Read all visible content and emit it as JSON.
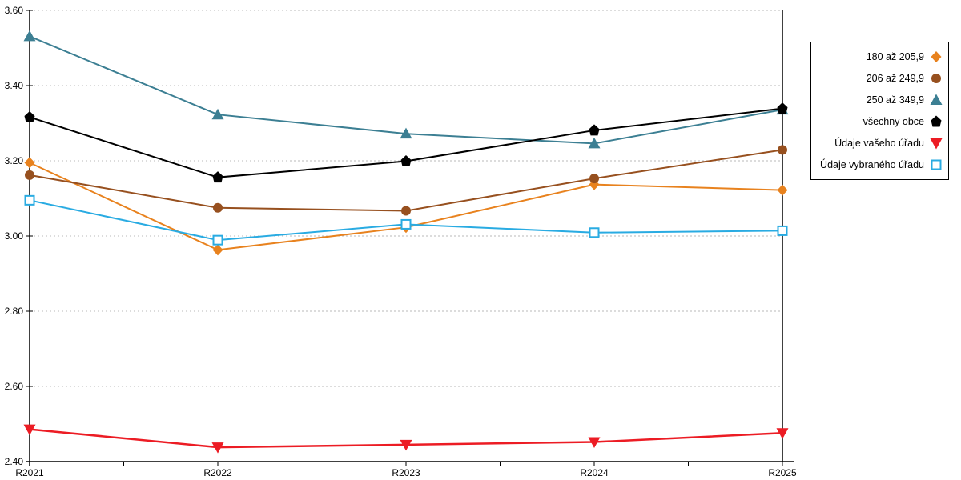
{
  "chart_data": {
    "type": "line",
    "title": "",
    "x_categories": [
      "R2021",
      "R2022",
      "R2023",
      "R2024",
      "R2025"
    ],
    "y_tick_labels": [
      "3.60",
      "3.40",
      "3.20",
      "3.00",
      "2.80",
      "2.60",
      "2.40"
    ],
    "ylim": [
      2.4,
      3.6
    ],
    "y_tick_step": 0.2,
    "grid": "horizontal-dotted",
    "gridline_color": "#b8b8b8",
    "axis_color": "#000000",
    "legend_position": "right",
    "series": [
      {
        "name": "180 až 205,9",
        "marker": "diamond",
        "color": "#E8821E",
        "values": [
          3.195,
          2.963,
          3.023,
          3.137,
          3.122
        ]
      },
      {
        "name": "206 až 249,9",
        "marker": "circle",
        "color": "#97501F",
        "values": [
          3.162,
          3.075,
          3.067,
          3.153,
          3.229
        ]
      },
      {
        "name": "250 až 349,9",
        "marker": "triangle-up",
        "color": "#3C7F93",
        "values": [
          3.531,
          3.323,
          3.272,
          3.246,
          3.336
        ]
      },
      {
        "name": "všechny obce",
        "marker": "pentagon",
        "color": "#000000",
        "values": [
          3.316,
          3.156,
          3.199,
          3.281,
          3.339
        ]
      },
      {
        "name": "Údaje vašeho úřadu",
        "marker": "triangle-down",
        "color": "#EC1C24",
        "values": [
          2.486,
          2.438,
          2.445,
          2.452,
          2.476
        ]
      },
      {
        "name": "Údaje vybraného úřadu",
        "marker": "square-open",
        "color": "#29ABE2",
        "values": [
          3.095,
          2.989,
          3.031,
          3.009,
          3.014
        ]
      }
    ]
  }
}
